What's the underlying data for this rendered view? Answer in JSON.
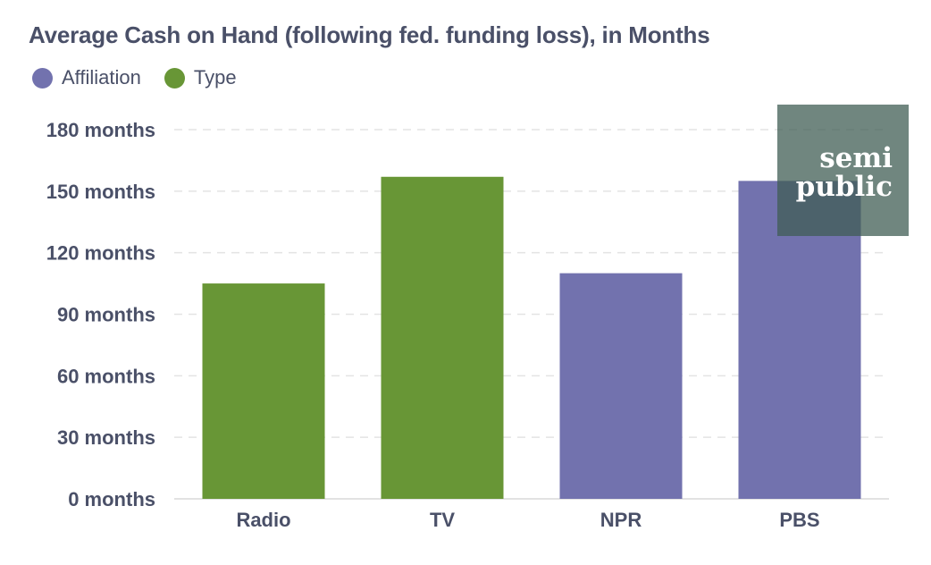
{
  "chart_data": {
    "type": "bar",
    "title": "Average Cash on Hand (following fed. funding loss), in Months",
    "categories": [
      "Radio",
      "TV",
      "NPR",
      "PBS"
    ],
    "values": [
      105,
      157,
      110,
      155
    ],
    "groups": [
      "Type",
      "Type",
      "Affiliation",
      "Affiliation"
    ],
    "legend": [
      {
        "name": "Affiliation",
        "color": "#7272ae"
      },
      {
        "name": "Type",
        "color": "#689636"
      }
    ],
    "ylim": [
      0,
      180
    ],
    "yticks": [
      0,
      30,
      60,
      90,
      120,
      150,
      180
    ],
    "ytick_labels": [
      "0 months",
      "30 months",
      "60 months",
      "90 months",
      "120 months",
      "150 months",
      "180 months"
    ],
    "xlabel": "",
    "ylabel": "",
    "grid": true,
    "legend_position": "top-left"
  },
  "logo": {
    "lines": [
      "semi",
      "public"
    ]
  }
}
